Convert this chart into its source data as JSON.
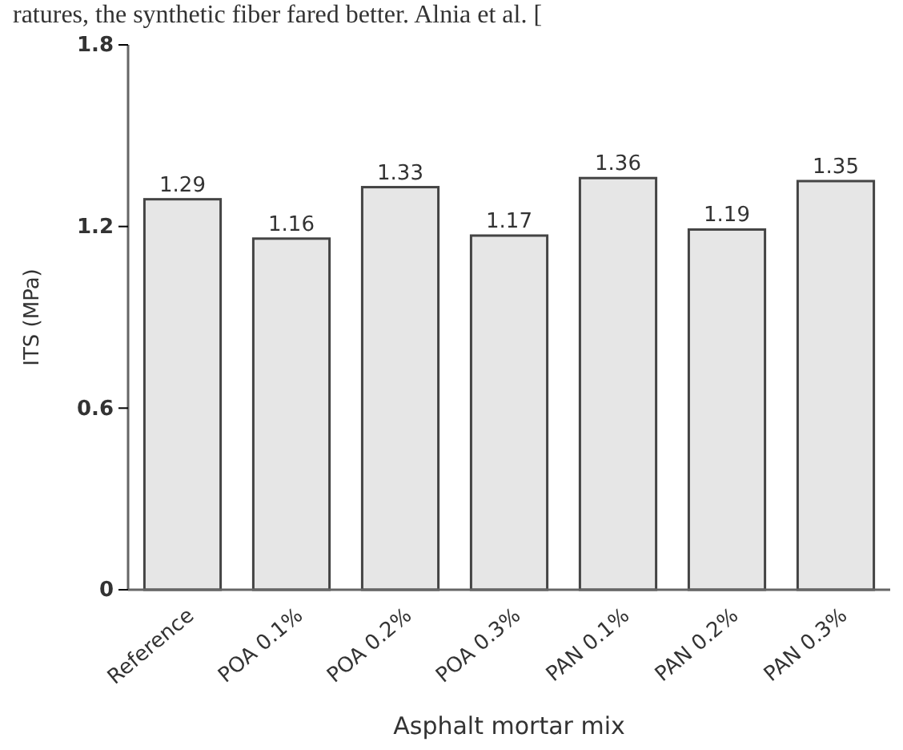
{
  "chart_data": {
    "type": "bar",
    "xlabel": "Asphalt mortar mix",
    "ylabel": "ITS (MPa)",
    "annotations": [
      "ratures, the synthetic fiber fared better. Alnia et al. ["
    ],
    "categories": [
      "Reference",
      "POA 0.1%",
      "POA 0.2%",
      "POA 0.3%",
      "PAN 0.1%",
      "PAN 0.2%",
      "PAN 0.3%"
    ],
    "values": [
      1.29,
      1.16,
      1.33,
      1.17,
      1.36,
      1.19,
      1.35
    ],
    "color": "#e6e6e6",
    "ylim": [
      0,
      1.8
    ],
    "yticks": [
      0,
      0.6,
      1.2,
      1.8
    ],
    "data_labels": true,
    "grid": false
  }
}
